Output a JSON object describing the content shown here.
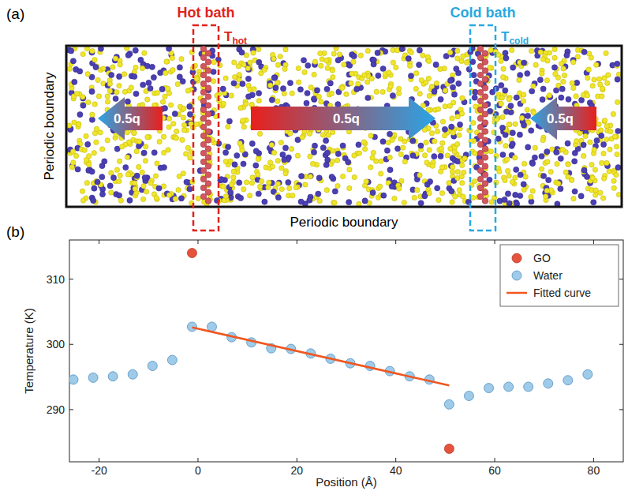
{
  "diagram": {
    "panel_label": "(a)",
    "hot_bath": {
      "label": "Hot bath",
      "temperature": {
        "symbol": "T",
        "subscript": "hot"
      }
    },
    "cold_bath": {
      "label": "Cold bath",
      "temperature": {
        "symbol": "T",
        "subscript": "cold"
      }
    },
    "flows": [
      "0.5q",
      "0.5q",
      "0.5q"
    ],
    "boundaries": {
      "left": "Periodic boundary",
      "bottom": "Periodic boundary"
    }
  },
  "chart_data": {
    "type": "scatter",
    "panel_label": "(b)",
    "x_label": "Position (Å)",
    "y_label": "Temperature (K)",
    "xlim": [
      -26,
      86
    ],
    "xticks": [
      -20,
      0,
      20,
      40,
      60,
      80
    ],
    "ylim": [
      282,
      316
    ],
    "yticks": [
      290,
      300,
      310
    ],
    "legend": "upper right",
    "series": [
      {
        "name": "GO",
        "type": "scatter",
        "color": "#e5533c",
        "x": [
          -1.2,
          50.8
        ],
        "values": [
          314,
          284
        ]
      },
      {
        "name": "Water",
        "type": "scatter",
        "color": "#9fcbe8",
        "x": [
          -25.2,
          -21.2,
          -17.2,
          -13.2,
          -9.2,
          -5.2,
          -1.2,
          2.8,
          6.8,
          10.8,
          14.8,
          18.8,
          22.8,
          26.8,
          30.8,
          34.8,
          38.8,
          42.8,
          46.8,
          50.8,
          54.8,
          58.8,
          62.8,
          66.8,
          70.8,
          74.8,
          78.8
        ],
        "values": [
          294.6,
          294.9,
          295.1,
          295.4,
          296.7,
          297.6,
          302.7,
          302.7,
          301.1,
          300.3,
          299.4,
          299.3,
          298.6,
          297.8,
          297.1,
          296.7,
          295.9,
          295.1,
          294.6,
          290.8,
          292.1,
          293.3,
          293.5,
          293.5,
          294.0,
          294.5,
          295.4
        ]
      },
      {
        "name": "Fitted curve",
        "type": "line",
        "color": "#f0561f",
        "x": [
          -1.2,
          50.8
        ],
        "values": [
          302.6,
          293.7
        ]
      }
    ]
  }
}
